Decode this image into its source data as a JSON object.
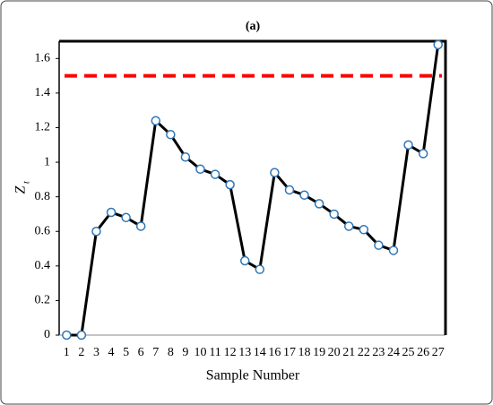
{
  "chart_data": {
    "type": "line",
    "title": "(a)",
    "xlabel": "Sample Number",
    "ylabel": "Z",
    "ylabel_subscript": "t",
    "categories": [
      "1",
      "2",
      "3",
      "4",
      "5",
      "6",
      "7",
      "8",
      "9",
      "10",
      "11",
      "12",
      "13",
      "14",
      "16",
      "17",
      "18",
      "19",
      "20",
      "21",
      "22",
      "23",
      "24",
      "25",
      "26",
      "27"
    ],
    "series": [
      {
        "name": "Zt",
        "color": "#000000",
        "marker_color": "#2e75b6",
        "values": [
          0,
          0,
          0.6,
          0.71,
          0.68,
          0.63,
          1.24,
          1.16,
          1.03,
          0.96,
          0.93,
          0.87,
          0.43,
          0.38,
          0.94,
          0.84,
          0.81,
          0.76,
          0.7,
          0.63,
          0.61,
          0.52,
          0.49,
          1.1,
          1.05,
          1.68
        ]
      }
    ],
    "control_limit": {
      "value": 1.5,
      "color": "#ff0000"
    },
    "ylim": [
      0,
      1.7
    ],
    "yticks": [
      0,
      0.2,
      0.4,
      0.6,
      0.8,
      1,
      1.2,
      1.4,
      1.6
    ],
    "grid": false
  }
}
